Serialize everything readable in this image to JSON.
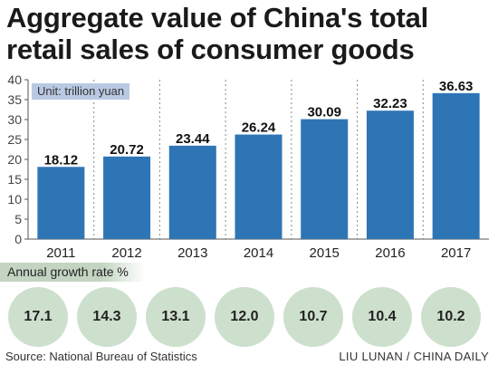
{
  "title": "Aggregate value of China's total retail sales of consumer goods",
  "unit_label": "Unit: trillion yuan",
  "growth_label": "Annual growth rate %",
  "growth_rates": [
    "17.1",
    "14.3",
    "13.1",
    "12.0",
    "10.7",
    "10.4",
    "10.2"
  ],
  "source": "Source: National Bureau of Statistics",
  "credit": "LIU LUNAN / CHINA DAILY",
  "colors": {
    "bar": "#2e75b6",
    "circle": "#cde0cd",
    "label_bg": "#c3d5c2",
    "unit_bg": "#b9c9e3"
  },
  "chart_data": {
    "type": "bar",
    "categories": [
      "2011",
      "2012",
      "2013",
      "2014",
      "2015",
      "2016",
      "2017"
    ],
    "values": [
      18.12,
      20.72,
      23.44,
      26.24,
      30.09,
      32.23,
      36.63
    ],
    "value_labels": [
      "18.12",
      "20.72",
      "23.44",
      "26.24",
      "30.09",
      "32.23",
      "36.63"
    ],
    "yticks": [
      "0",
      "5",
      "10",
      "15",
      "20",
      "25",
      "30",
      "35",
      "40"
    ],
    "ylim": [
      0,
      40
    ],
    "grid": "dashed vertical separators"
  }
}
